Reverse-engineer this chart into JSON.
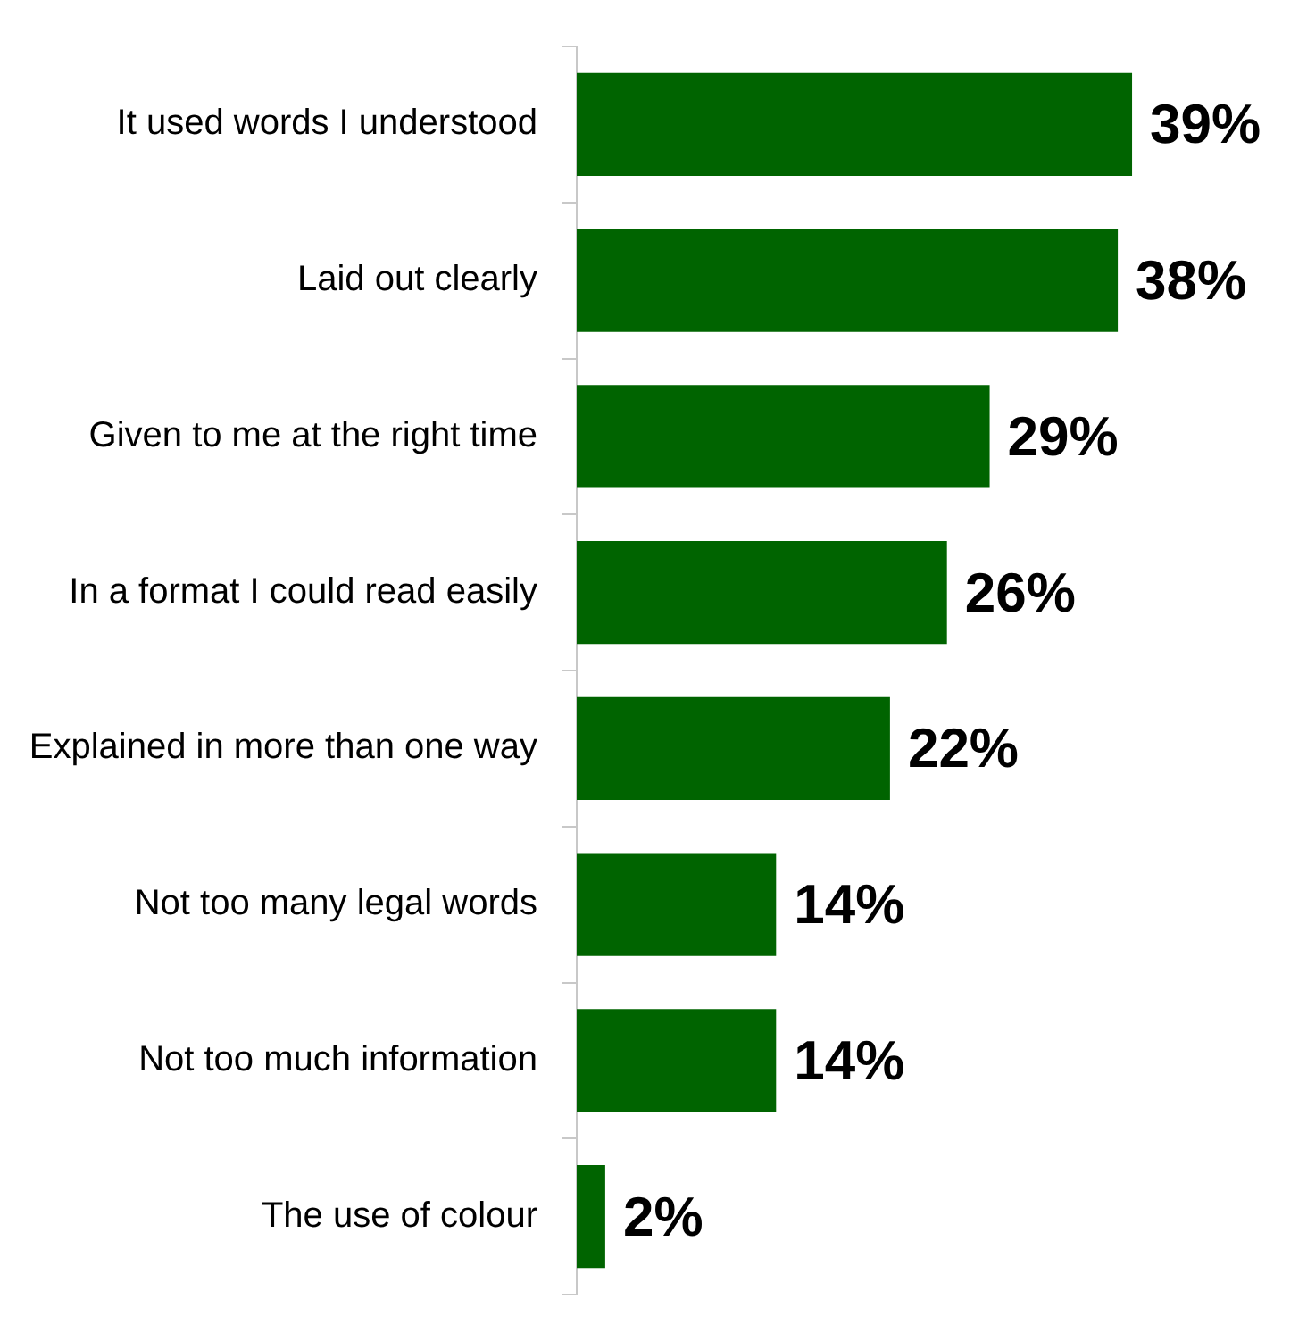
{
  "chart_data": {
    "type": "bar",
    "orientation": "horizontal",
    "categories": [
      "It used words I understood",
      "Laid out clearly",
      "Given to me at the right time",
      "In a format I could read easily",
      "Explained in more than one way",
      "Not too many legal words",
      "Not too much information",
      "The use of colour"
    ],
    "values": [
      39,
      38,
      29,
      26,
      22,
      14,
      14,
      2
    ],
    "value_labels": [
      "39%",
      "38%",
      "29%",
      "26%",
      "22%",
      "14%",
      "14%",
      "2%"
    ],
    "color": "#006400",
    "legend": false
  }
}
